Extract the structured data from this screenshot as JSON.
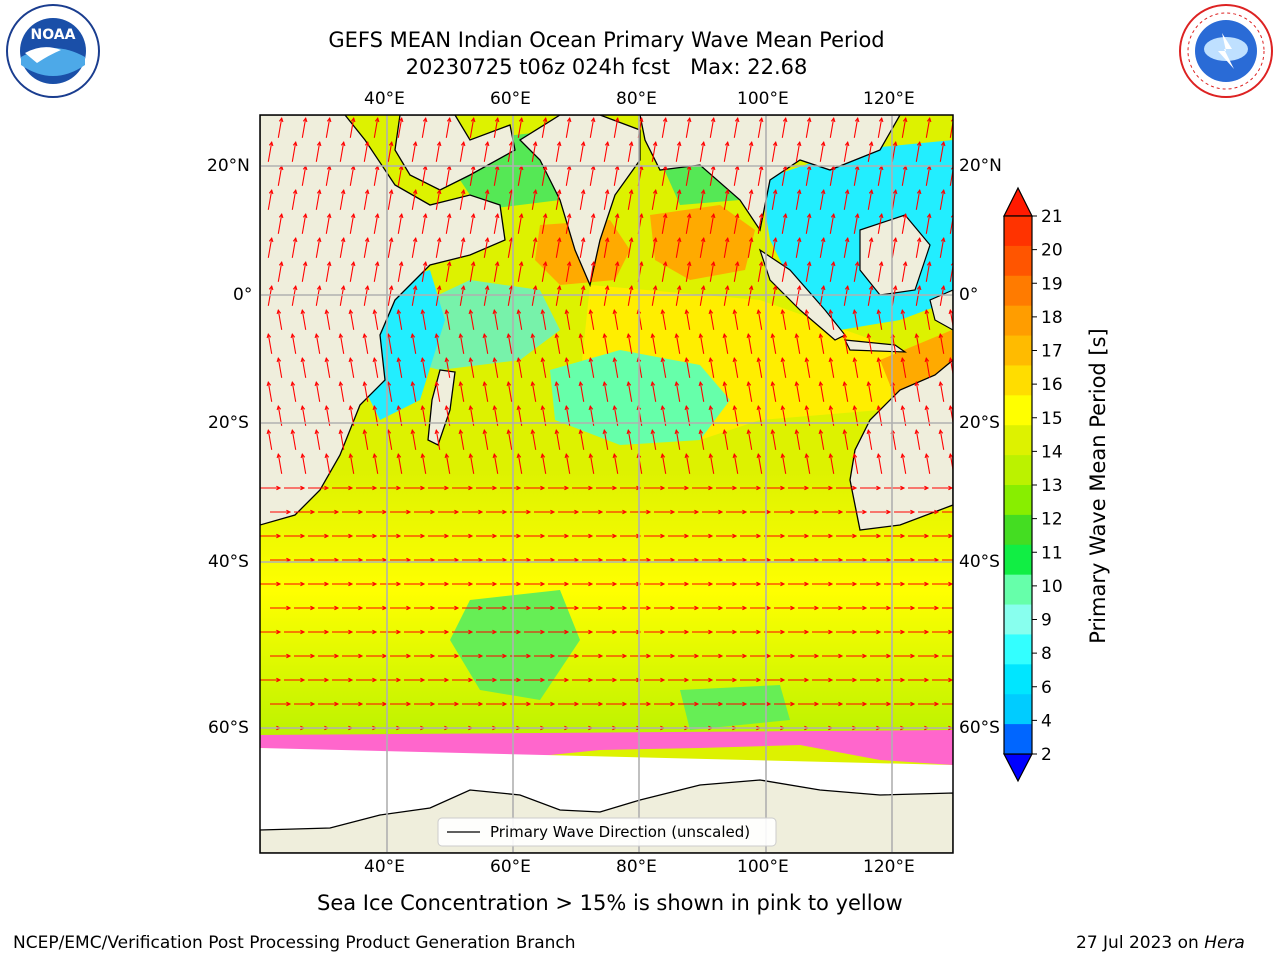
{
  "header": {
    "title_line1": "GEFS MEAN Indian Ocean Primary Wave Mean Period",
    "title_line2": "20230725 t06z 024h fcst   Max: 22.68"
  },
  "logos": {
    "left_text": "NOAA",
    "left_ring_text": "NATIONAL OCEANIC AND ATMOSPHERIC ADMINISTRATION · U.S. DEPARTMENT OF COMMERCE",
    "right_ring_text": "NATIONAL WEATHER SERVICE"
  },
  "map": {
    "lon_ticks": [
      "40°E",
      "60°E",
      "80°E",
      "100°E",
      "120°E"
    ],
    "lat_ticks": [
      "20°N",
      "0°",
      "20°S",
      "40°S",
      "60°S"
    ],
    "legend_label": "Primary Wave Direction (unscaled)",
    "land_color": "#efeedc",
    "arrow_color": "#ff0000"
  },
  "colorbar": {
    "label": "Primary Wave Mean Period [s]",
    "ticks": [
      "21",
      "20",
      "19",
      "18",
      "17",
      "16",
      "15",
      "14",
      "13",
      "12",
      "11",
      "10",
      "9",
      "8",
      "6",
      "4",
      "2"
    ],
    "colors": [
      "#ff3300",
      "#ff5500",
      "#ff7b00",
      "#ff9d00",
      "#ffbb00",
      "#ffdd00",
      "#ffff00",
      "#ddf200",
      "#bbf200",
      "#88ee00",
      "#44dd22",
      "#11ee44",
      "#66ffaa",
      "#88ffee",
      "#33ffff",
      "#00e6ff",
      "#00ccff",
      "#0066ff"
    ],
    "over_color": "#ff1a00",
    "under_color": "#0000ff"
  },
  "caption": "Sea Ice Concentration > 15% is shown in pink to yellow",
  "footer": {
    "left": "NCEP/EMC/Verification Post Processing Product Generation Branch",
    "right_date": "27 Jul 2023 on ",
    "right_host": "Hera"
  }
}
